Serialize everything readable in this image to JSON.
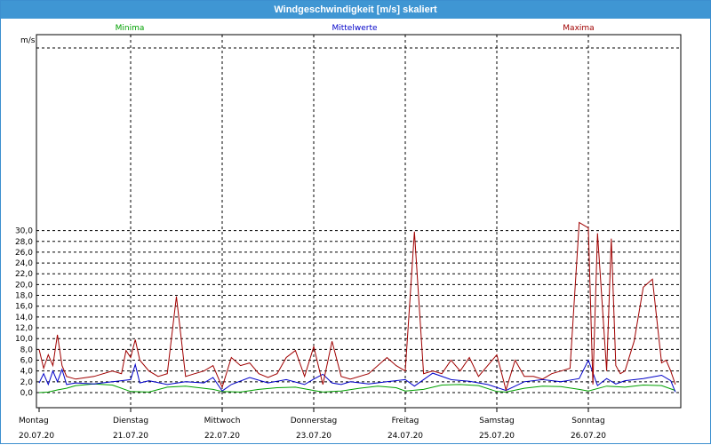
{
  "window": {
    "title": "Windgeschwindigkeit [m/s] skaliert"
  },
  "colors": {
    "minima": "#00a000",
    "mittel": "#0000c8",
    "maxima": "#a00000",
    "titlebar": "#3f96d3"
  },
  "chart_data": {
    "type": "line",
    "title": "Windgeschwindigkeit [m/s] skaliert",
    "ylabel": "m/s",
    "ylim": [
      0,
      32
    ],
    "yticks": [
      "0,0",
      "2,0",
      "4,0",
      "6,0",
      "8,0",
      "10,0",
      "12,0",
      "14,0",
      "16,0",
      "18,0",
      "20,0",
      "22,0",
      "24,0",
      "26,0",
      "28,0",
      "30,0"
    ],
    "ytick_values": [
      0,
      2,
      4,
      6,
      8,
      10,
      12,
      14,
      16,
      18,
      20,
      22,
      24,
      26,
      28,
      30
    ],
    "x_range_days": [
      0,
      7
    ],
    "x_days": [
      0,
      1,
      2,
      3,
      4,
      5,
      6
    ],
    "x_day_names": [
      "Montag",
      "Dienstag",
      "Mittwoch",
      "Donnerstag",
      "Freitag",
      "Samstag",
      "Sonntag"
    ],
    "x_dates": [
      "20.07.20",
      "21.07.20",
      "22.07.20",
      "23.07.20",
      "24.07.20",
      "25.07.20",
      "26.07.20"
    ],
    "grid": true,
    "legend": [
      "Minima",
      "Mittelwerte",
      "Maxima"
    ],
    "series": [
      {
        "name": "Minima",
        "x": [
          0,
          0.1,
          0.2,
          0.3,
          0.4,
          0.6,
          0.8,
          1.0,
          1.2,
          1.4,
          1.6,
          1.9,
          2.0,
          2.2,
          2.4,
          2.6,
          2.8,
          3.0,
          3.1,
          3.3,
          3.5,
          3.7,
          3.9,
          4.0,
          4.2,
          4.4,
          4.6,
          4.8,
          5.0,
          5.1,
          5.3,
          5.5,
          5.7,
          5.9,
          6.0,
          6.2,
          6.4,
          6.6,
          6.8,
          6.95
        ],
        "values": [
          0,
          0.1,
          0.5,
          0.8,
          1.3,
          1.6,
          1.4,
          0.2,
          0.1,
          1.0,
          1.2,
          0.6,
          0.2,
          0.1,
          0.6,
          0.9,
          1.0,
          0.4,
          0.1,
          0.3,
          0.8,
          1.2,
          0.9,
          0.3,
          0.6,
          1.4,
          1.5,
          1.3,
          0.2,
          0.1,
          0.8,
          1.2,
          1.1,
          0.6,
          0.3,
          1.2,
          1.0,
          1.4,
          1.3,
          0.4
        ]
      },
      {
        "name": "Mittelwerte",
        "x": [
          0,
          0.05,
          0.1,
          0.15,
          0.2,
          0.25,
          0.3,
          0.4,
          0.6,
          0.8,
          1.0,
          1.05,
          1.1,
          1.2,
          1.4,
          1.6,
          1.8,
          1.9,
          2.0,
          2.1,
          2.3,
          2.5,
          2.7,
          2.9,
          3.0,
          3.1,
          3.2,
          3.3,
          3.4,
          3.6,
          3.8,
          4.0,
          4.1,
          4.3,
          4.5,
          4.7,
          4.9,
          5.1,
          5.3,
          5.5,
          5.7,
          5.9,
          6.0,
          6.1,
          6.2,
          6.3,
          6.4,
          6.6,
          6.8,
          6.9,
          6.95
        ],
        "values": [
          1.8,
          3.5,
          1.5,
          4.0,
          2.0,
          4.3,
          1.5,
          1.8,
          1.6,
          2.0,
          2.4,
          5.2,
          1.8,
          2.2,
          1.5,
          2.0,
          1.8,
          2.8,
          0.3,
          1.5,
          2.8,
          1.8,
          2.4,
          1.5,
          2.5,
          3.4,
          1.8,
          1.5,
          2.0,
          1.6,
          2.0,
          2.4,
          1.2,
          3.6,
          2.4,
          2.1,
          1.5,
          0.4,
          2.0,
          2.4,
          2.0,
          2.6,
          6.0,
          1.3,
          2.6,
          1.6,
          2.2,
          2.6,
          3.2,
          2.2,
          0.1
        ]
      },
      {
        "name": "Maxima",
        "x": [
          0,
          0.05,
          0.1,
          0.15,
          0.2,
          0.25,
          0.3,
          0.4,
          0.6,
          0.8,
          0.9,
          0.95,
          1.0,
          1.05,
          1.1,
          1.2,
          1.3,
          1.4,
          1.5,
          1.6,
          1.7,
          1.8,
          1.9,
          2.0,
          2.1,
          2.2,
          2.3,
          2.4,
          2.5,
          2.6,
          2.7,
          2.8,
          2.9,
          3.0,
          3.1,
          3.2,
          3.3,
          3.4,
          3.6,
          3.8,
          3.9,
          4.0,
          4.1,
          4.2,
          4.3,
          4.4,
          4.5,
          4.6,
          4.7,
          4.8,
          5.0,
          5.1,
          5.2,
          5.3,
          5.4,
          5.5,
          5.6,
          5.7,
          5.8,
          5.9,
          6.0,
          6.05,
          6.1,
          6.2,
          6.25,
          6.3,
          6.35,
          6.4,
          6.5,
          6.6,
          6.7,
          6.8,
          6.85,
          6.9,
          6.95
        ],
        "values": [
          8.0,
          4.5,
          7.0,
          5.0,
          10.7,
          5.0,
          3.0,
          2.5,
          3.0,
          4.0,
          3.5,
          7.8,
          6.5,
          9.8,
          6.0,
          4.0,
          3.0,
          3.5,
          17.8,
          3.0,
          3.5,
          4.0,
          5.0,
          1.0,
          6.5,
          5.0,
          5.5,
          3.5,
          2.8,
          3.5,
          6.5,
          7.8,
          3.0,
          8.5,
          1.5,
          9.5,
          3.0,
          2.5,
          3.5,
          6.5,
          5.0,
          4.0,
          29.8,
          3.5,
          4.0,
          3.5,
          6.0,
          4.0,
          6.5,
          3.0,
          7.0,
          0.5,
          6.0,
          3.0,
          3.0,
          2.5,
          3.5,
          4.0,
          4.5,
          31.5,
          30.5,
          1.5,
          29.5,
          4.0,
          28.5,
          5.0,
          3.5,
          4.0,
          9.5,
          19.5,
          21.0,
          5.5,
          6.0,
          4.0,
          1.5
        ]
      }
    ]
  }
}
